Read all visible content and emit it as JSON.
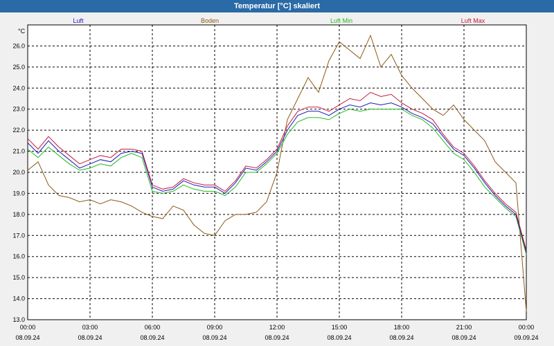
{
  "window": {
    "title": "Temperatur [°C] skaliert"
  },
  "colors": {
    "luft": "#1a1ab8",
    "boden": "#8b5a14",
    "luft_min": "#22b822",
    "luft_max": "#c41a3a",
    "grid": "#000000"
  },
  "chart_data": {
    "type": "line",
    "title": "Temperatur [°C] skaliert",
    "ylabel": "°C",
    "xlabel": "",
    "ylim": [
      13.0,
      27.0
    ],
    "xlim": [
      0,
      24
    ],
    "grid": true,
    "legend_placement": "top",
    "y_ticks": [
      "13.0",
      "14.0",
      "15.0",
      "16.0",
      "17.0",
      "18.0",
      "19.0",
      "20.0",
      "21.0",
      "22.0",
      "23.0",
      "24.0",
      "25.0",
      "26.0"
    ],
    "x_ticks": [
      {
        "time": "00:00",
        "date": "08.09.24"
      },
      {
        "time": "03:00",
        "date": "08.09.24"
      },
      {
        "time": "06:00",
        "date": "08.09.24"
      },
      {
        "time": "09:00",
        "date": "08.09.24"
      },
      {
        "time": "12:00",
        "date": "08.09.24"
      },
      {
        "time": "15:00",
        "date": "08.09.24"
      },
      {
        "time": "18:00",
        "date": "08.09.24"
      },
      {
        "time": "21:00",
        "date": "08.09.24"
      },
      {
        "time": "00:00",
        "date": "09.09.24"
      }
    ],
    "x": [
      0,
      0.5,
      1,
      1.5,
      2,
      2.5,
      3,
      3.5,
      4,
      4.5,
      5,
      5.5,
      6,
      6.5,
      7,
      7.5,
      8,
      8.5,
      9,
      9.5,
      10,
      10.5,
      11,
      11.5,
      12,
      12.5,
      13,
      13.5,
      14,
      14.5,
      15,
      15.5,
      16,
      16.5,
      17,
      17.5,
      18,
      18.5,
      19,
      19.5,
      20,
      20.5,
      21,
      21.5,
      22,
      22.5,
      23,
      23.5
    ],
    "series": [
      {
        "name": "Luft",
        "key": "luft",
        "values": [
          21.4,
          20.9,
          21.5,
          21.0,
          20.6,
          20.2,
          20.4,
          20.6,
          20.5,
          20.9,
          21.0,
          20.9,
          19.3,
          19.1,
          19.2,
          19.6,
          19.4,
          19.3,
          19.3,
          19.0,
          19.5,
          20.2,
          20.1,
          20.5,
          21.0,
          22.0,
          22.7,
          22.9,
          22.9,
          22.7,
          23.0,
          23.2,
          23.1,
          23.3,
          23.2,
          23.3,
          23.1,
          22.8,
          22.6,
          22.3,
          21.7,
          21.1,
          20.8,
          20.2,
          19.5,
          18.9,
          18.4,
          18.0
        ]
      },
      {
        "name": "Boden",
        "key": "boden",
        "values": [
          20.1,
          20.5,
          19.4,
          18.9,
          18.8,
          18.6,
          18.7,
          18.5,
          18.7,
          18.6,
          18.4,
          18.1,
          17.9,
          17.8,
          18.4,
          18.2,
          17.5,
          17.1,
          17.0,
          17.7,
          18.0,
          18.0,
          18.1,
          18.6,
          20.0,
          22.5,
          23.5,
          24.5,
          23.8,
          25.3,
          26.2,
          25.8,
          25.4,
          26.5,
          25.0,
          25.6,
          24.6,
          24.0,
          23.5,
          23.0,
          22.7,
          23.2,
          22.5,
          22.0,
          21.5,
          20.5,
          20.0,
          19.5
        ]
      },
      {
        "name": "Luft Min",
        "key": "luft_min",
        "values": [
          21.1,
          20.7,
          21.2,
          20.8,
          20.4,
          20.1,
          20.2,
          20.4,
          20.3,
          20.7,
          20.9,
          20.7,
          19.1,
          19.0,
          19.1,
          19.4,
          19.2,
          19.1,
          19.1,
          18.9,
          19.3,
          20.0,
          20.0,
          20.4,
          20.9,
          21.8,
          22.4,
          22.6,
          22.6,
          22.5,
          22.8,
          23.0,
          22.9,
          23.0,
          23.0,
          23.0,
          23.0,
          22.7,
          22.5,
          22.1,
          21.5,
          20.9,
          20.6,
          20.0,
          19.3,
          18.8,
          18.3,
          17.9
        ]
      },
      {
        "name": "Luft Max",
        "key": "luft_max",
        "values": [
          21.6,
          21.1,
          21.7,
          21.2,
          20.8,
          20.4,
          20.6,
          20.8,
          20.7,
          21.1,
          21.1,
          21.0,
          19.4,
          19.2,
          19.3,
          19.7,
          19.5,
          19.4,
          19.4,
          19.1,
          19.6,
          20.3,
          20.2,
          20.6,
          21.1,
          22.2,
          22.9,
          23.1,
          23.1,
          22.9,
          23.2,
          23.5,
          23.4,
          23.8,
          23.6,
          23.7,
          23.3,
          23.0,
          22.8,
          22.5,
          21.8,
          21.2,
          20.9,
          20.3,
          19.6,
          19.0,
          18.5,
          18.1
        ]
      }
    ],
    "x_tail": [
      24
    ],
    "series_tail": {
      "luft": [
        16.2
      ],
      "boden": [
        13.4
      ],
      "luft_min": [
        16.1
      ],
      "luft_max": [
        16.3
      ]
    }
  }
}
